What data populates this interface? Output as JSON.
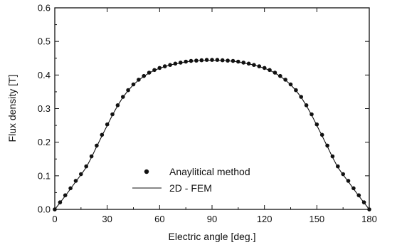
{
  "chart_data": {
    "type": "line",
    "xlabel": "Electric angle [deg.]",
    "ylabel": "Flux density [T]",
    "xlim": [
      0,
      180
    ],
    "ylim": [
      0,
      0.6
    ],
    "xticks": [
      0,
      30,
      60,
      90,
      120,
      150,
      180
    ],
    "yticks": [
      0.0,
      0.1,
      0.2,
      0.3,
      0.4,
      0.5,
      0.6
    ],
    "xtick_labels": [
      "0",
      "30",
      "60",
      "90",
      "120",
      "150",
      "180"
    ],
    "ytick_labels": [
      "0.0",
      "0.1",
      "0.2",
      "0.3",
      "0.4",
      "0.5",
      "0.6"
    ],
    "grid": false,
    "legend_position": "lower-center",
    "series": [
      {
        "name": "Anaylitical method",
        "style": "markers",
        "x": [
          0,
          3,
          6,
          9,
          12,
          15,
          18,
          21,
          24,
          27,
          30,
          33,
          36,
          39,
          42,
          45,
          48,
          51,
          54,
          57,
          60,
          63,
          66,
          69,
          72,
          75,
          78,
          81,
          84,
          87,
          90,
          93,
          96,
          99,
          102,
          105,
          108,
          111,
          114,
          117,
          120,
          123,
          126,
          129,
          132,
          135,
          138,
          141,
          144,
          147,
          150,
          153,
          156,
          159,
          162,
          165,
          168,
          171,
          174,
          177,
          180
        ],
        "y": [
          0.0,
          0.021,
          0.042,
          0.063,
          0.085,
          0.105,
          0.128,
          0.158,
          0.19,
          0.222,
          0.253,
          0.283,
          0.31,
          0.335,
          0.355,
          0.372,
          0.386,
          0.397,
          0.407,
          0.415,
          0.421,
          0.426,
          0.43,
          0.434,
          0.437,
          0.44,
          0.442,
          0.443,
          0.444,
          0.445,
          0.445,
          0.445,
          0.444,
          0.443,
          0.442,
          0.44,
          0.437,
          0.434,
          0.43,
          0.426,
          0.421,
          0.415,
          0.407,
          0.397,
          0.386,
          0.372,
          0.355,
          0.335,
          0.31,
          0.283,
          0.253,
          0.222,
          0.19,
          0.158,
          0.128,
          0.105,
          0.085,
          0.063,
          0.042,
          0.021,
          0.0
        ]
      },
      {
        "name": "2D - FEM",
        "style": "line",
        "x": [
          0,
          3,
          6,
          9,
          12,
          15,
          18,
          21,
          24,
          27,
          30,
          33,
          36,
          39,
          42,
          45,
          48,
          51,
          54,
          57,
          60,
          63,
          66,
          69,
          72,
          75,
          78,
          81,
          84,
          87,
          90,
          93,
          96,
          99,
          102,
          105,
          108,
          111,
          114,
          117,
          120,
          123,
          126,
          129,
          132,
          135,
          138,
          141,
          144,
          147,
          150,
          153,
          156,
          159,
          162,
          165,
          168,
          171,
          174,
          177,
          180
        ],
        "y": [
          0.0,
          0.02,
          0.04,
          0.061,
          0.083,
          0.103,
          0.125,
          0.155,
          0.187,
          0.219,
          0.25,
          0.281,
          0.309,
          0.334,
          0.354,
          0.371,
          0.385,
          0.396,
          0.406,
          0.414,
          0.42,
          0.425,
          0.43,
          0.433,
          0.436,
          0.439,
          0.441,
          0.442,
          0.443,
          0.444,
          0.444,
          0.444,
          0.443,
          0.442,
          0.441,
          0.439,
          0.436,
          0.433,
          0.43,
          0.425,
          0.42,
          0.414,
          0.406,
          0.396,
          0.385,
          0.371,
          0.354,
          0.334,
          0.309,
          0.281,
          0.25,
          0.219,
          0.187,
          0.155,
          0.125,
          0.103,
          0.083,
          0.061,
          0.04,
          0.02,
          0.0
        ]
      }
    ]
  }
}
